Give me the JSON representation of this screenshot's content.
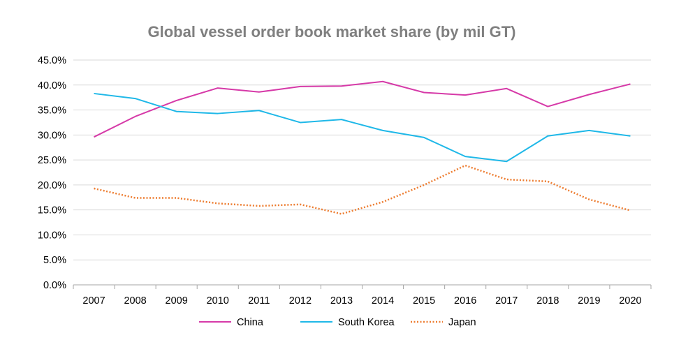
{
  "chart_data": {
    "type": "line",
    "title": "Global vessel order book market share (by mil GT)",
    "xlabel": "",
    "ylabel": "",
    "categories": [
      "2007",
      "2008",
      "2009",
      "2010",
      "2011",
      "2012",
      "2013",
      "2014",
      "2015",
      "2016",
      "2017",
      "2018",
      "2019",
      "2020"
    ],
    "ylim": [
      0,
      45
    ],
    "yticks": [
      "0.0%",
      "5.0%",
      "10.0%",
      "15.0%",
      "20.0%",
      "25.0%",
      "30.0%",
      "35.0%",
      "40.0%",
      "45.0%"
    ],
    "grid": true,
    "legend_position": "bottom",
    "series": [
      {
        "name": "China",
        "color": "#d63aa8",
        "style": "solid",
        "values": [
          29.6,
          33.7,
          36.9,
          39.4,
          38.6,
          39.7,
          39.8,
          40.7,
          38.5,
          38.0,
          39.3,
          35.7,
          38.1,
          40.2
        ]
      },
      {
        "name": "South Korea",
        "color": "#1fb8e8",
        "style": "solid",
        "values": [
          38.3,
          37.3,
          34.7,
          34.3,
          34.9,
          32.5,
          33.1,
          30.9,
          29.5,
          25.7,
          24.7,
          29.8,
          30.9,
          29.8
        ]
      },
      {
        "name": "Japan",
        "color": "#ed7d31",
        "style": "dotted",
        "values": [
          19.3,
          17.4,
          17.4,
          16.3,
          15.8,
          16.1,
          14.2,
          16.6,
          20.0,
          23.9,
          21.1,
          20.7,
          17.1,
          14.9
        ]
      }
    ]
  }
}
